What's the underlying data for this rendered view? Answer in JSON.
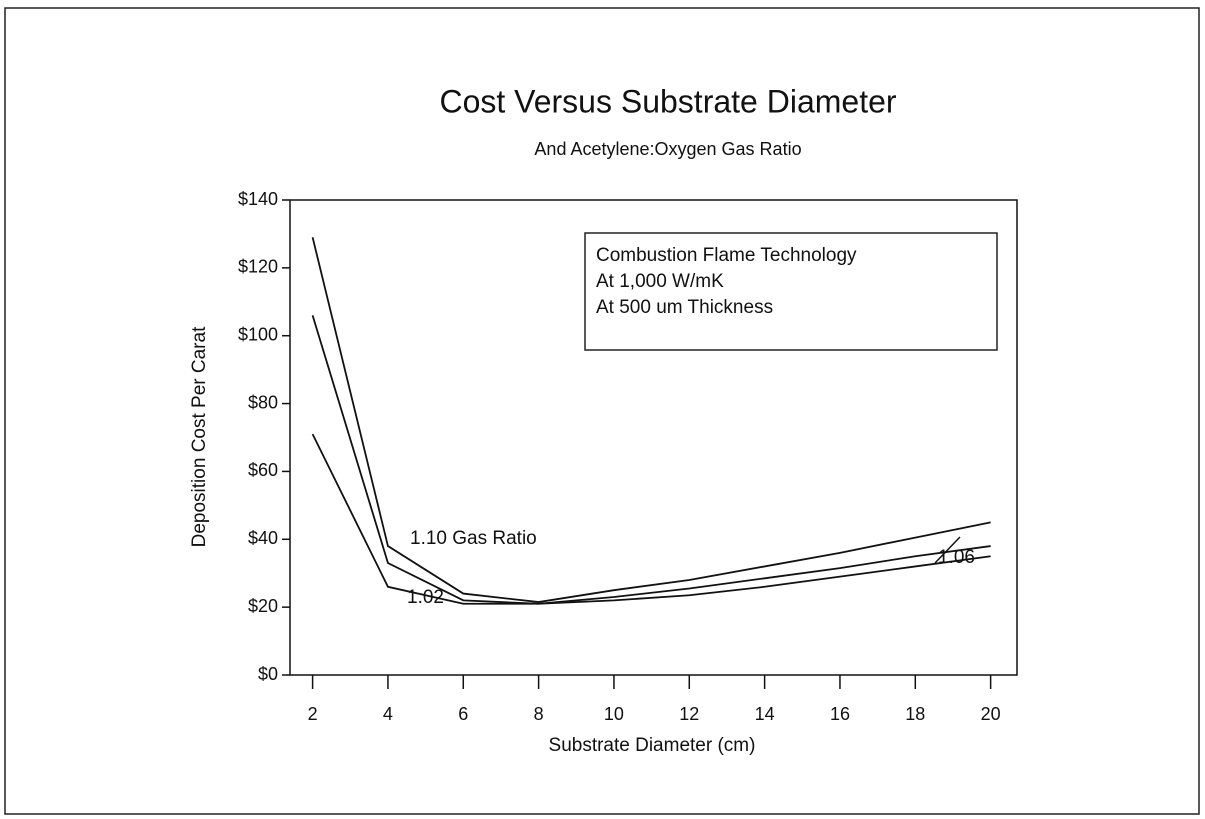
{
  "chart_data": {
    "type": "line",
    "title": "Cost Versus Substrate Diameter",
    "subtitle": "And Acetylene:Oxygen Gas Ratio",
    "x_label": "Substrate Diameter (cm)",
    "y_label": "Deposition Cost Per Carat",
    "x": [
      2,
      4,
      6,
      8,
      10,
      12,
      14,
      16,
      18,
      20
    ],
    "series": [
      {
        "name": "1.10 Gas Ratio",
        "color": "#111111",
        "values": [
          129,
          38,
          24,
          21.5,
          25,
          28,
          32,
          36,
          40.5,
          45
        ]
      },
      {
        "name": "1.06",
        "color": "#111111",
        "values": [
          106,
          33,
          22,
          21,
          23,
          25.5,
          28.5,
          31.5,
          35,
          38
        ]
      },
      {
        "name": "1.02",
        "color": "#111111",
        "values": [
          71,
          26,
          21,
          21,
          22,
          23.5,
          26,
          29,
          32,
          35
        ]
      }
    ],
    "annotation": [
      "Combustion Flame Technology",
      "At 1,000 W/mK",
      "At 500 um Thickness"
    ],
    "xlim": [
      1.4,
      20.7
    ],
    "ylim": [
      0,
      140
    ],
    "xticks": [
      2,
      4,
      6,
      8,
      10,
      12,
      14,
      16,
      18,
      20
    ],
    "yticks": [
      {
        "value": 0,
        "label": "$0"
      },
      {
        "value": 20,
        "label": "$20"
      },
      {
        "value": 40,
        "label": "$40"
      },
      {
        "value": 60,
        "label": "$60"
      },
      {
        "value": 80,
        "label": "$80"
      },
      {
        "value": 100,
        "label": "$100"
      },
      {
        "value": 120,
        "label": "$120"
      },
      {
        "value": 140,
        "label": "$140"
      }
    ],
    "grid": false
  }
}
